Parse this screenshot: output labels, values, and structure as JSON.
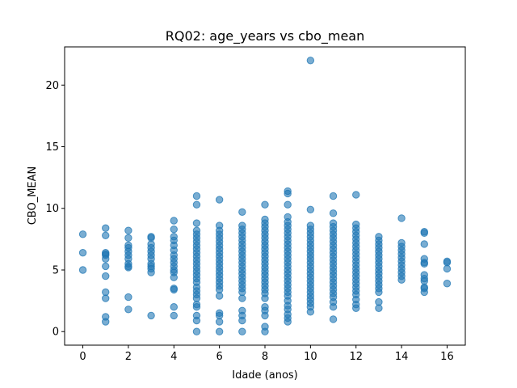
{
  "chart_data": {
    "type": "scatter",
    "title": "RQ02: age_years vs cbo_mean",
    "xlabel": "Idade (anos)",
    "ylabel": "CBO_MEAN",
    "xlim": [
      -0.8,
      16.8
    ],
    "ylim": [
      -1.1,
      23.1
    ],
    "xticks": [
      0,
      2,
      4,
      6,
      8,
      10,
      12,
      14,
      16
    ],
    "yticks": [
      0,
      5,
      10,
      15,
      20
    ],
    "grid": false,
    "legend": "none",
    "marker_color": "#1f77b4",
    "marker_alpha": 0.6,
    "points": [
      [
        0,
        7.9
      ],
      [
        0,
        6.4
      ],
      [
        0,
        5.0
      ],
      [
        1,
        8.4
      ],
      [
        1,
        7.8
      ],
      [
        1,
        6.4
      ],
      [
        1,
        6.3
      ],
      [
        1,
        6.2
      ],
      [
        1,
        5.9
      ],
      [
        1,
        5.3
      ],
      [
        1,
        4.5
      ],
      [
        1,
        3.2
      ],
      [
        1,
        2.7
      ],
      [
        1,
        1.2
      ],
      [
        1,
        0.8
      ],
      [
        2,
        8.2
      ],
      [
        2,
        7.6
      ],
      [
        2,
        7.0
      ],
      [
        2,
        6.8
      ],
      [
        2,
        6.5
      ],
      [
        2,
        6.2
      ],
      [
        2,
        5.9
      ],
      [
        2,
        5.5
      ],
      [
        2,
        5.3
      ],
      [
        2,
        5.2
      ],
      [
        2,
        2.8
      ],
      [
        2,
        1.8
      ],
      [
        3,
        7.7
      ],
      [
        3,
        7.6
      ],
      [
        3,
        7.1
      ],
      [
        3,
        6.8
      ],
      [
        3,
        6.5
      ],
      [
        3,
        6.2
      ],
      [
        3,
        5.9
      ],
      [
        3,
        5.5
      ],
      [
        3,
        5.3
      ],
      [
        3,
        5.1
      ],
      [
        3,
        4.8
      ],
      [
        3,
        1.3
      ],
      [
        4,
        9.0
      ],
      [
        4,
        8.3
      ],
      [
        4,
        7.7
      ],
      [
        4,
        7.4
      ],
      [
        4,
        7.0
      ],
      [
        4,
        6.6
      ],
      [
        4,
        6.2
      ],
      [
        4,
        5.9
      ],
      [
        4,
        5.6
      ],
      [
        4,
        5.3
      ],
      [
        4,
        5.0
      ],
      [
        4,
        4.8
      ],
      [
        4,
        4.4
      ],
      [
        4,
        3.5
      ],
      [
        4,
        3.4
      ],
      [
        4,
        2.0
      ],
      [
        4,
        1.3
      ],
      [
        5,
        11.0
      ],
      [
        5,
        10.3
      ],
      [
        5,
        8.8
      ],
      [
        5,
        8.2
      ],
      [
        5,
        7.9
      ],
      [
        5,
        7.6
      ],
      [
        5,
        7.3
      ],
      [
        5,
        7.0
      ],
      [
        5,
        6.7
      ],
      [
        5,
        6.4
      ],
      [
        5,
        6.1
      ],
      [
        5,
        5.8
      ],
      [
        5,
        5.5
      ],
      [
        5,
        5.2
      ],
      [
        5,
        4.9
      ],
      [
        5,
        4.6
      ],
      [
        5,
        4.3
      ],
      [
        5,
        4.0
      ],
      [
        5,
        3.6
      ],
      [
        5,
        3.3
      ],
      [
        5,
        3.0
      ],
      [
        5,
        2.7
      ],
      [
        5,
        2.2
      ],
      [
        5,
        2.0
      ],
      [
        5,
        1.3
      ],
      [
        5,
        0.9
      ],
      [
        5,
        0.0
      ],
      [
        6,
        10.7
      ],
      [
        6,
        8.6
      ],
      [
        6,
        8.2
      ],
      [
        6,
        7.9
      ],
      [
        6,
        7.6
      ],
      [
        6,
        7.3
      ],
      [
        6,
        7.0
      ],
      [
        6,
        6.7
      ],
      [
        6,
        6.4
      ],
      [
        6,
        6.1
      ],
      [
        6,
        5.8
      ],
      [
        6,
        5.5
      ],
      [
        6,
        5.2
      ],
      [
        6,
        4.9
      ],
      [
        6,
        4.6
      ],
      [
        6,
        4.3
      ],
      [
        6,
        4.0
      ],
      [
        6,
        3.7
      ],
      [
        6,
        3.4
      ],
      [
        6,
        2.9
      ],
      [
        6,
        1.5
      ],
      [
        6,
        1.3
      ],
      [
        6,
        0.8
      ],
      [
        6,
        0.0
      ],
      [
        7,
        9.7
      ],
      [
        7,
        8.6
      ],
      [
        7,
        8.3
      ],
      [
        7,
        8.0
      ],
      [
        7,
        7.7
      ],
      [
        7,
        7.4
      ],
      [
        7,
        7.1
      ],
      [
        7,
        6.8
      ],
      [
        7,
        6.5
      ],
      [
        7,
        6.2
      ],
      [
        7,
        5.9
      ],
      [
        7,
        5.6
      ],
      [
        7,
        5.3
      ],
      [
        7,
        5.0
      ],
      [
        7,
        4.7
      ],
      [
        7,
        4.4
      ],
      [
        7,
        4.1
      ],
      [
        7,
        3.8
      ],
      [
        7,
        3.5
      ],
      [
        7,
        3.2
      ],
      [
        7,
        2.7
      ],
      [
        7,
        1.7
      ],
      [
        7,
        1.3
      ],
      [
        7,
        0.9
      ],
      [
        7,
        0.0
      ],
      [
        8,
        10.3
      ],
      [
        8,
        9.1
      ],
      [
        8,
        8.8
      ],
      [
        8,
        8.5
      ],
      [
        8,
        8.2
      ],
      [
        8,
        7.9
      ],
      [
        8,
        7.6
      ],
      [
        8,
        7.3
      ],
      [
        8,
        7.0
      ],
      [
        8,
        6.7
      ],
      [
        8,
        6.4
      ],
      [
        8,
        6.1
      ],
      [
        8,
        5.8
      ],
      [
        8,
        5.5
      ],
      [
        8,
        5.2
      ],
      [
        8,
        4.9
      ],
      [
        8,
        4.6
      ],
      [
        8,
        4.3
      ],
      [
        8,
        4.0
      ],
      [
        8,
        3.7
      ],
      [
        8,
        3.4
      ],
      [
        8,
        3.1
      ],
      [
        8,
        2.7
      ],
      [
        8,
        2.0
      ],
      [
        8,
        1.7
      ],
      [
        8,
        1.3
      ],
      [
        8,
        0.4
      ],
      [
        8,
        0.0
      ],
      [
        9,
        11.4
      ],
      [
        9,
        11.2
      ],
      [
        9,
        10.3
      ],
      [
        9,
        9.3
      ],
      [
        9,
        8.9
      ],
      [
        9,
        8.6
      ],
      [
        9,
        8.3
      ],
      [
        9,
        8.0
      ],
      [
        9,
        7.7
      ],
      [
        9,
        7.4
      ],
      [
        9,
        7.1
      ],
      [
        9,
        6.8
      ],
      [
        9,
        6.5
      ],
      [
        9,
        6.2
      ],
      [
        9,
        5.9
      ],
      [
        9,
        5.6
      ],
      [
        9,
        5.3
      ],
      [
        9,
        5.0
      ],
      [
        9,
        4.7
      ],
      [
        9,
        4.4
      ],
      [
        9,
        4.1
      ],
      [
        9,
        3.8
      ],
      [
        9,
        3.5
      ],
      [
        9,
        3.2
      ],
      [
        9,
        2.9
      ],
      [
        9,
        2.5
      ],
      [
        9,
        2.1
      ],
      [
        9,
        1.8
      ],
      [
        9,
        1.4
      ],
      [
        9,
        1.1
      ],
      [
        9,
        0.8
      ],
      [
        10,
        22.0
      ],
      [
        10,
        9.9
      ],
      [
        10,
        8.6
      ],
      [
        10,
        8.3
      ],
      [
        10,
        8.0
      ],
      [
        10,
        7.7
      ],
      [
        10,
        7.4
      ],
      [
        10,
        7.1
      ],
      [
        10,
        6.8
      ],
      [
        10,
        6.5
      ],
      [
        10,
        6.2
      ],
      [
        10,
        5.9
      ],
      [
        10,
        5.6
      ],
      [
        10,
        5.3
      ],
      [
        10,
        5.0
      ],
      [
        10,
        4.7
      ],
      [
        10,
        4.4
      ],
      [
        10,
        4.1
      ],
      [
        10,
        3.8
      ],
      [
        10,
        3.5
      ],
      [
        10,
        3.2
      ],
      [
        10,
        2.9
      ],
      [
        10,
        2.6
      ],
      [
        10,
        2.3
      ],
      [
        10,
        2.0
      ],
      [
        10,
        1.6
      ],
      [
        11,
        11.0
      ],
      [
        11,
        9.6
      ],
      [
        11,
        8.8
      ],
      [
        11,
        8.5
      ],
      [
        11,
        8.2
      ],
      [
        11,
        7.9
      ],
      [
        11,
        7.6
      ],
      [
        11,
        7.3
      ],
      [
        11,
        7.0
      ],
      [
        11,
        6.7
      ],
      [
        11,
        6.4
      ],
      [
        11,
        6.1
      ],
      [
        11,
        5.8
      ],
      [
        11,
        5.5
      ],
      [
        11,
        5.2
      ],
      [
        11,
        4.9
      ],
      [
        11,
        4.6
      ],
      [
        11,
        4.3
      ],
      [
        11,
        4.0
      ],
      [
        11,
        3.7
      ],
      [
        11,
        3.4
      ],
      [
        11,
        3.1
      ],
      [
        11,
        2.8
      ],
      [
        11,
        2.4
      ],
      [
        11,
        2.0
      ],
      [
        11,
        1.0
      ],
      [
        12,
        11.1
      ],
      [
        12,
        8.7
      ],
      [
        12,
        8.4
      ],
      [
        12,
        8.1
      ],
      [
        12,
        7.8
      ],
      [
        12,
        7.5
      ],
      [
        12,
        7.2
      ],
      [
        12,
        6.9
      ],
      [
        12,
        6.6
      ],
      [
        12,
        6.3
      ],
      [
        12,
        6.0
      ],
      [
        12,
        5.7
      ],
      [
        12,
        5.4
      ],
      [
        12,
        5.1
      ],
      [
        12,
        4.8
      ],
      [
        12,
        4.5
      ],
      [
        12,
        4.2
      ],
      [
        12,
        3.9
      ],
      [
        12,
        3.6
      ],
      [
        12,
        3.3
      ],
      [
        12,
        3.0
      ],
      [
        12,
        2.6
      ],
      [
        12,
        2.2
      ],
      [
        12,
        1.9
      ],
      [
        13,
        7.7
      ],
      [
        13,
        7.4
      ],
      [
        13,
        7.1
      ],
      [
        13,
        6.8
      ],
      [
        13,
        6.5
      ],
      [
        13,
        6.2
      ],
      [
        13,
        5.9
      ],
      [
        13,
        5.6
      ],
      [
        13,
        5.3
      ],
      [
        13,
        5.0
      ],
      [
        13,
        4.7
      ],
      [
        13,
        4.4
      ],
      [
        13,
        4.1
      ],
      [
        13,
        3.8
      ],
      [
        13,
        3.5
      ],
      [
        13,
        3.2
      ],
      [
        13,
        2.4
      ],
      [
        13,
        1.9
      ],
      [
        14,
        9.2
      ],
      [
        14,
        7.2
      ],
      [
        14,
        6.9
      ],
      [
        14,
        6.6
      ],
      [
        14,
        6.3
      ],
      [
        14,
        6.0
      ],
      [
        14,
        5.7
      ],
      [
        14,
        5.4
      ],
      [
        14,
        5.1
      ],
      [
        14,
        4.8
      ],
      [
        14,
        4.5
      ],
      [
        14,
        4.2
      ],
      [
        15,
        8.1
      ],
      [
        15,
        8.0
      ],
      [
        15,
        7.1
      ],
      [
        15,
        5.9
      ],
      [
        15,
        5.6
      ],
      [
        15,
        5.5
      ],
      [
        15,
        4.6
      ],
      [
        15,
        4.3
      ],
      [
        15,
        4.1
      ],
      [
        15,
        3.6
      ],
      [
        15,
        3.5
      ],
      [
        15,
        3.2
      ],
      [
        16,
        5.7
      ],
      [
        16,
        5.6
      ],
      [
        16,
        5.1
      ],
      [
        16,
        3.9
      ]
    ]
  }
}
